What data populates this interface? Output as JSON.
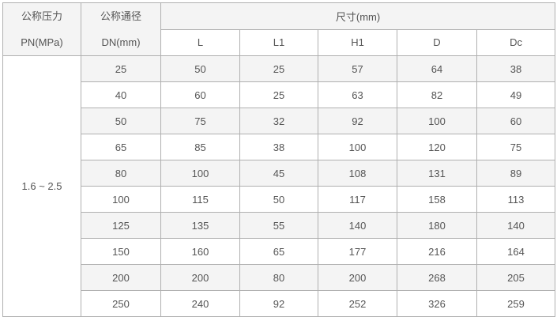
{
  "header": {
    "pn_label": "公称压力",
    "pn_unit": "PN(MPa)",
    "dn_label": "公称通径",
    "dn_unit": "DN(mm)",
    "dims_label": "尺寸(mm)",
    "columns": [
      "L",
      "L1",
      "H1",
      "D",
      "Dc"
    ]
  },
  "pn_value": "1.6 ~ 2.5",
  "rows": [
    [
      "25",
      "50",
      "25",
      "57",
      "64",
      "38"
    ],
    [
      "40",
      "60",
      "25",
      "63",
      "82",
      "49"
    ],
    [
      "50",
      "75",
      "32",
      "92",
      "100",
      "60"
    ],
    [
      "65",
      "85",
      "38",
      "100",
      "120",
      "75"
    ],
    [
      "80",
      "100",
      "45",
      "108",
      "131",
      "89"
    ],
    [
      "100",
      "115",
      "50",
      "117",
      "158",
      "113"
    ],
    [
      "125",
      "135",
      "55",
      "140",
      "180",
      "140"
    ],
    [
      "150",
      "160",
      "65",
      "177",
      "216",
      "164"
    ],
    [
      "200",
      "200",
      "80",
      "200",
      "268",
      "205"
    ],
    [
      "250",
      "240",
      "92",
      "252",
      "326",
      "259"
    ]
  ]
}
